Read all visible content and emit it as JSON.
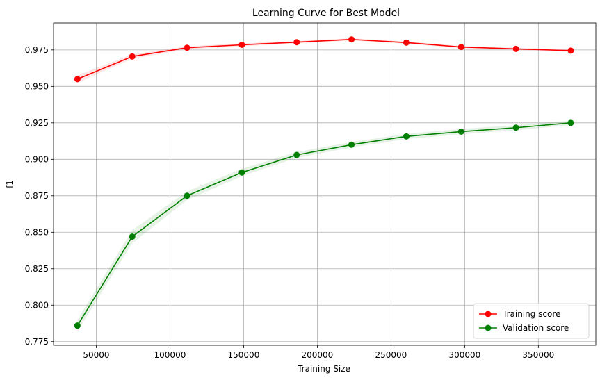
{
  "chart_data": {
    "type": "line",
    "title": "Learning Curve for Best Model",
    "xlabel": "Training Size",
    "ylabel": "f1",
    "xlim": [
      21000,
      389000
    ],
    "ylim": [
      0.7725,
      0.9935
    ],
    "x_ticks": [
      50000,
      100000,
      150000,
      200000,
      250000,
      300000,
      350000
    ],
    "y_ticks": [
      0.775,
      0.8,
      0.825,
      0.85,
      0.875,
      0.9,
      0.925,
      0.95,
      0.975
    ],
    "grid": true,
    "legend_position": "lower-right",
    "x": [
      37200,
      74400,
      111600,
      148800,
      186000,
      223200,
      260400,
      297600,
      334800,
      372000
    ],
    "series": [
      {
        "name": "Training score",
        "color": "#ff0000",
        "marker": "circle",
        "values": [
          0.955,
          0.9705,
          0.9765,
          0.9785,
          0.9803,
          0.9822,
          0.98,
          0.977,
          0.9757,
          0.9745
        ],
        "std": [
          0.0025,
          0.0015,
          0.001,
          0.001,
          0.0008,
          0.0008,
          0.0008,
          0.0008,
          0.0008,
          0.0008
        ]
      },
      {
        "name": "Validation score",
        "color": "#008000",
        "marker": "circle",
        "values": [
          0.786,
          0.847,
          0.875,
          0.891,
          0.903,
          0.91,
          0.9157,
          0.919,
          0.9217,
          0.925
        ],
        "std": [
          0.004,
          0.0045,
          0.003,
          0.0025,
          0.002,
          0.0018,
          0.0018,
          0.0018,
          0.0018,
          0.0015
        ]
      }
    ]
  }
}
